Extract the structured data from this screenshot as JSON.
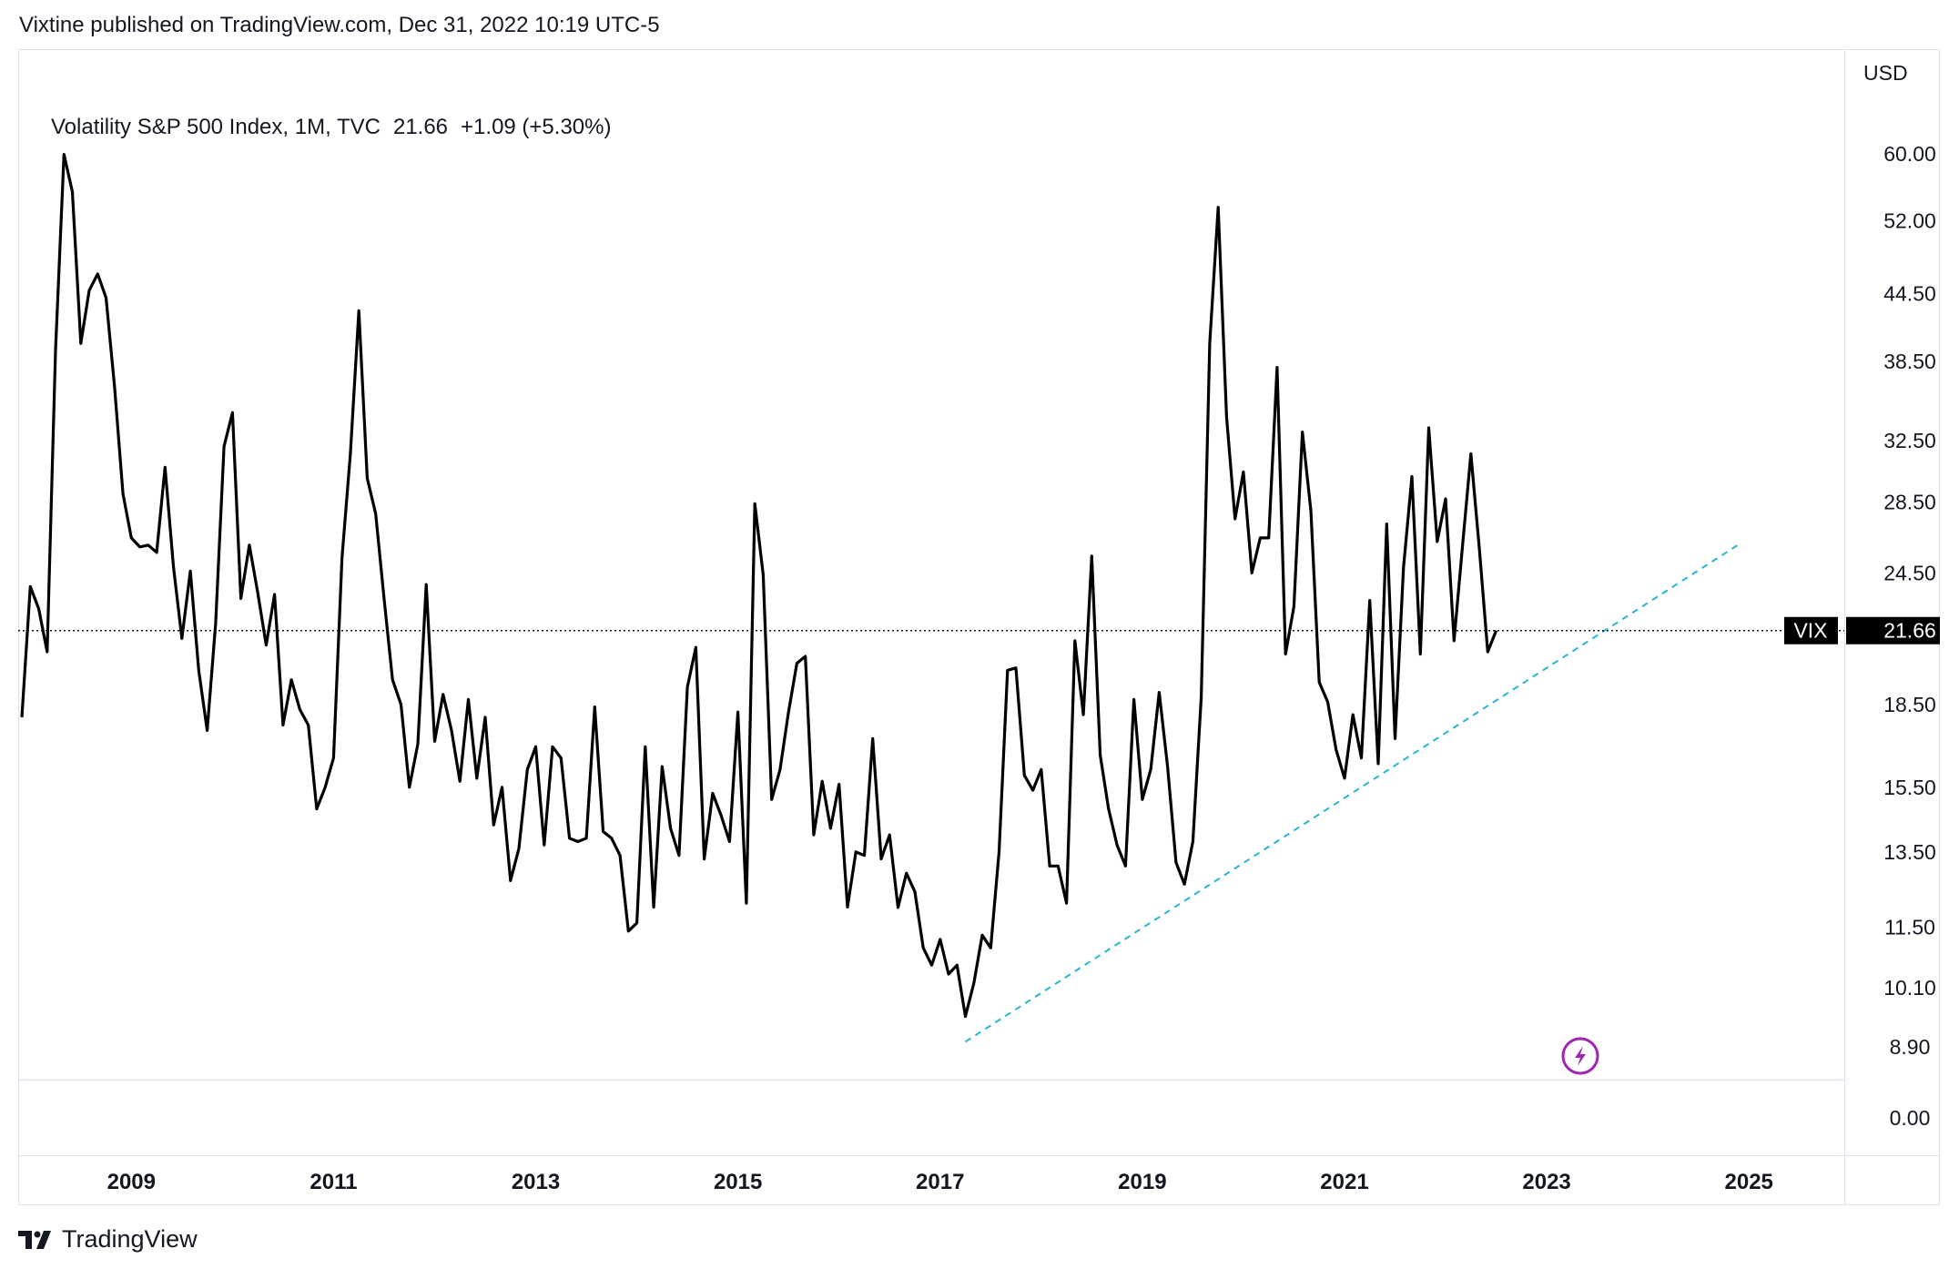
{
  "publisher": "Vixtine published on TradingView.com, Dec 31, 2022 10:19 UTC-5",
  "legend": {
    "symbol": "Volatility S&P 500 Index, 1M, TVC",
    "last": "21.66",
    "change": "+1.09 (+5.30%)"
  },
  "footer": {
    "brand": "TradingView",
    "logo_icon": "tradingview-logo-icon"
  },
  "colors": {
    "line": "#000000",
    "trendline": "#26b5d3",
    "label_bg": "#000000",
    "grid": "#e0e3eb",
    "badge": "#9c27b0"
  },
  "chart_data": {
    "type": "line",
    "title": "Volatility S&P 500 Index, 1M, TVC",
    "currency": "USD",
    "y_scale": "log",
    "ylim": [
      8.3,
      75
    ],
    "xlim": [
      "2007-12",
      "2025-12"
    ],
    "x_ticks": [
      "2009",
      "2011",
      "2013",
      "2015",
      "2017",
      "2019",
      "2021",
      "2023",
      "2025"
    ],
    "y_ticks": [
      "60.00",
      "52.00",
      "44.50",
      "38.50",
      "32.50",
      "28.50",
      "24.50",
      "18.50",
      "15.50",
      "13.50",
      "11.50",
      "10.10",
      "8.90"
    ],
    "lower_pane_tick": "0.00",
    "last_value_label": {
      "symbol": "VIX",
      "value": "21.66"
    },
    "grid": false,
    "series": [
      {
        "name": "VIX",
        "start": "2007-12",
        "frequency": "monthly",
        "values": [
          18.0,
          23.8,
          22.7,
          20.7,
          39.4,
          59.9,
          55.3,
          40.0,
          44.8,
          46.4,
          44.1,
          36.5,
          29.0,
          26.4,
          25.9,
          26.0,
          25.6,
          30.7,
          24.8,
          21.3,
          24.6,
          19.9,
          17.5,
          22.0,
          32.1,
          34.5,
          23.2,
          26.0,
          23.5,
          21.0,
          23.4,
          17.7,
          19.5,
          18.3,
          17.7,
          14.8,
          15.5,
          16.5,
          25.3,
          31.6,
          42.9,
          30.0,
          27.8,
          23.2,
          19.5,
          18.5,
          15.5,
          17.0,
          23.9,
          17.1,
          18.9,
          17.5,
          15.7,
          18.7,
          15.8,
          18.0,
          14.3,
          15.5,
          12.7,
          13.6,
          16.1,
          16.9,
          13.7,
          16.9,
          16.5,
          13.9,
          13.8,
          13.9,
          18.4,
          14.1,
          13.9,
          13.4,
          11.4,
          11.6,
          16.9,
          12.0,
          16.2,
          14.2,
          13.4,
          19.2,
          20.9,
          13.3,
          15.3,
          14.6,
          13.8,
          18.2,
          12.1,
          28.4,
          24.4,
          15.1,
          16.1,
          18.2,
          20.2,
          20.5,
          14.0,
          15.7,
          14.2,
          15.6,
          12.0,
          13.5,
          13.4,
          17.2,
          13.3,
          14.0,
          11.99,
          12.9,
          12.4,
          11.0,
          10.6,
          11.2,
          10.4,
          10.6,
          9.5,
          10.2,
          11.3,
          11.0,
          13.5,
          19.9,
          20.0,
          15.9,
          15.4,
          16.1,
          13.1,
          13.1,
          12.1,
          21.2,
          18.1,
          25.4,
          16.6,
          14.8,
          13.7,
          13.1,
          18.7,
          15.1,
          16.1,
          18.98,
          16.2,
          13.2,
          12.6,
          13.8,
          18.8,
          40.0,
          53.5,
          34.2,
          27.5,
          30.4,
          24.5,
          26.4,
          26.4,
          38.0,
          20.6,
          22.8,
          33.1,
          28.0,
          19.4,
          18.6,
          16.8,
          15.8,
          18.1,
          16.5,
          23.1,
          16.3,
          27.2,
          17.2,
          24.8,
          30.1,
          20.6,
          33.4,
          26.2,
          28.7,
          21.2,
          25.9,
          31.6,
          25.8,
          20.7,
          21.66
        ]
      }
    ],
    "annotations": [
      {
        "type": "trendline",
        "from": {
          "x": "2017-04",
          "y": 9.0
        },
        "to": {
          "x": "2024-12",
          "y": 26.1
        }
      }
    ]
  }
}
